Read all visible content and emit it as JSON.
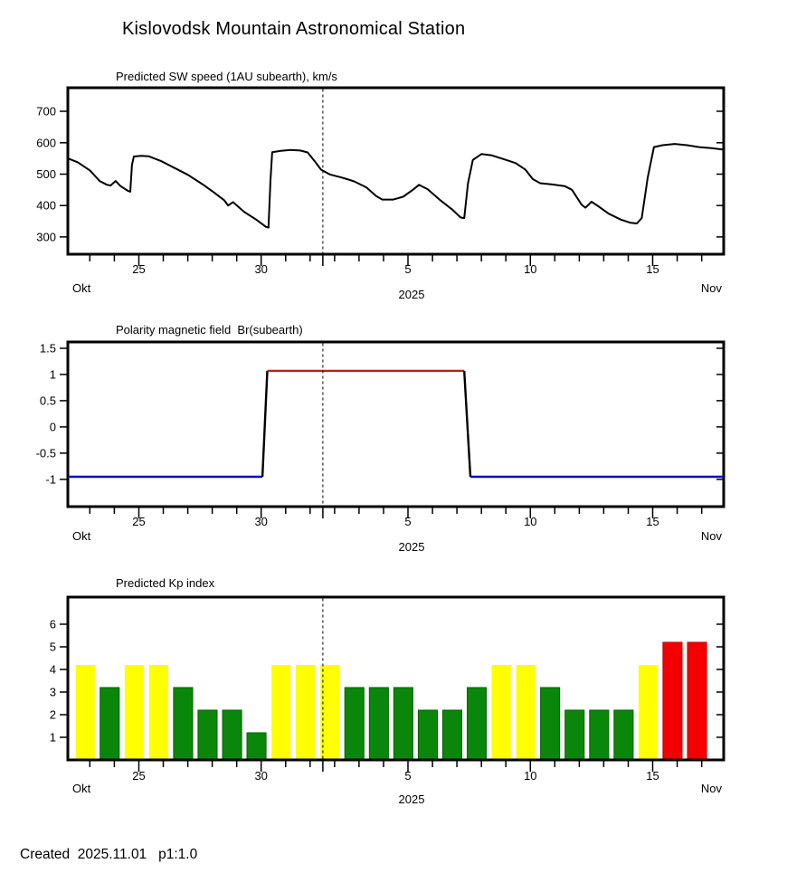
{
  "title": "Kislovodsk Mountain Astronomical Station",
  "footer": "Created  2025.11.01   p1:1.0",
  "colors": {
    "line": "#000000",
    "frame": "#000000",
    "polarity_positive": "#b22222",
    "polarity_negative": "#0909be",
    "yellow": "#ffff00",
    "yellow_edge": "#ededed00",
    "green": "#0a870a",
    "green_edge": "#066006",
    "red": "#f40000",
    "red_edge": "#c00000"
  },
  "x_axis": {
    "range": [
      0,
      26.8
    ],
    "start_label": "Okt",
    "end_label": "Nov",
    "year": "2025",
    "major_ticks": [
      {
        "t": 2.9,
        "label": "25"
      },
      {
        "t": 7.9,
        "label": "30"
      },
      {
        "t": 13.9,
        "label": "5"
      },
      {
        "t": 18.9,
        "label": "10"
      },
      {
        "t": 23.9,
        "label": "15"
      }
    ],
    "now_line_t": 10.42,
    "minor_tick_offset": 0.9,
    "minor_tick_count": 26
  },
  "chart_data": [
    {
      "type": "line",
      "title": "Predicted SW speed (1AU subearth), km/s",
      "yticks": [
        300,
        400,
        500,
        600,
        700
      ],
      "ylim": [
        245,
        775
      ],
      "points": [
        [
          0,
          550
        ],
        [
          0.4,
          538
        ],
        [
          0.9,
          512
        ],
        [
          1.3,
          478
        ],
        [
          1.6,
          466
        ],
        [
          1.75,
          464
        ],
        [
          1.95,
          478
        ],
        [
          2.15,
          462
        ],
        [
          2.45,
          447
        ],
        [
          2.55,
          444
        ],
        [
          2.62,
          530
        ],
        [
          2.7,
          556
        ],
        [
          3,
          558
        ],
        [
          3.3,
          557
        ],
        [
          3.8,
          542
        ],
        [
          4.3,
          522
        ],
        [
          4.9,
          498
        ],
        [
          5.5,
          468
        ],
        [
          6,
          440
        ],
        [
          6.4,
          416
        ],
        [
          6.55,
          400
        ],
        [
          6.75,
          411
        ],
        [
          7.2,
          380
        ],
        [
          7.7,
          355
        ],
        [
          8.1,
          332
        ],
        [
          8.2,
          330
        ],
        [
          8.28,
          480
        ],
        [
          8.35,
          570
        ],
        [
          8.7,
          574
        ],
        [
          9.1,
          577
        ],
        [
          9.5,
          575
        ],
        [
          9.8,
          569
        ],
        [
          10.1,
          540
        ],
        [
          10.35,
          514
        ],
        [
          10.7,
          499
        ],
        [
          11.2,
          489
        ],
        [
          11.7,
          477
        ],
        [
          12.2,
          458
        ],
        [
          12.6,
          430
        ],
        [
          12.85,
          419
        ],
        [
          13.3,
          419
        ],
        [
          13.7,
          428
        ],
        [
          14.1,
          450
        ],
        [
          14.35,
          466
        ],
        [
          14.7,
          452
        ],
        [
          15.2,
          418
        ],
        [
          15.7,
          388
        ],
        [
          16.05,
          362
        ],
        [
          16.2,
          360
        ],
        [
          16.35,
          470
        ],
        [
          16.55,
          545
        ],
        [
          16.9,
          564
        ],
        [
          17.3,
          560
        ],
        [
          17.8,
          548
        ],
        [
          18.3,
          535
        ],
        [
          18.7,
          514
        ],
        [
          19,
          484
        ],
        [
          19.3,
          471
        ],
        [
          19.8,
          467
        ],
        [
          20.3,
          462
        ],
        [
          20.6,
          450
        ],
        [
          21,
          402
        ],
        [
          21.15,
          393
        ],
        [
          21.4,
          412
        ],
        [
          21.65,
          399
        ],
        [
          22.1,
          374
        ],
        [
          22.6,
          355
        ],
        [
          23,
          345
        ],
        [
          23.25,
          343
        ],
        [
          23.45,
          360
        ],
        [
          23.7,
          490
        ],
        [
          23.95,
          586
        ],
        [
          24.3,
          592
        ],
        [
          24.8,
          596
        ],
        [
          25.3,
          592
        ],
        [
          25.8,
          586
        ],
        [
          26.3,
          583
        ],
        [
          26.8,
          578
        ]
      ]
    },
    {
      "type": "step",
      "title": "Polarity magnetic field  Br(subearth)",
      "ytick_labels": [
        "1.5",
        "1",
        "0.5",
        "0",
        "-0.5",
        "-1"
      ],
      "ytick_values": [
        1.5,
        1,
        0.5,
        0,
        -0.5,
        -1
      ],
      "ylim": [
        -1.52,
        1.62
      ],
      "segments": [
        {
          "color_key": "polarity_negative",
          "points": [
            [
              0,
              -0.95
            ],
            [
              7.95,
              -0.95
            ]
          ]
        },
        {
          "color_key": "line",
          "points": [
            [
              7.95,
              -0.95
            ],
            [
              8.15,
              1.07
            ]
          ]
        },
        {
          "color_key": "polarity_positive",
          "points": [
            [
              8.15,
              1.07
            ],
            [
              16.2,
              1.07
            ]
          ]
        },
        {
          "color_key": "line",
          "points": [
            [
              16.2,
              1.07
            ],
            [
              16.45,
              -0.95
            ]
          ]
        },
        {
          "color_key": "polarity_negative",
          "points": [
            [
              16.45,
              -0.95
            ],
            [
              26.8,
              -0.95
            ]
          ]
        }
      ]
    },
    {
      "type": "bar",
      "title": "Predicted Kp index",
      "yticks": [
        1,
        2,
        3,
        4,
        5,
        6
      ],
      "ylim": [
        0,
        7.2
      ],
      "values": [
        4.2,
        3.2,
        4.2,
        4.2,
        3.2,
        2.2,
        2.2,
        1.2,
        4.2,
        4.2,
        4.2,
        3.2,
        3.2,
        3.2,
        2.2,
        2.2,
        3.2,
        4.2,
        4.2,
        3.2,
        2.2,
        2.2,
        2.2,
        4.2,
        5.2,
        5.2
      ],
      "colors": [
        "yellow",
        "green",
        "yellow",
        "yellow",
        "green",
        "green",
        "green",
        "green",
        "yellow",
        "yellow",
        "yellow",
        "green",
        "green",
        "green",
        "green",
        "green",
        "green",
        "yellow",
        "yellow",
        "green",
        "green",
        "green",
        "green",
        "yellow",
        "red",
        "red"
      ]
    }
  ]
}
